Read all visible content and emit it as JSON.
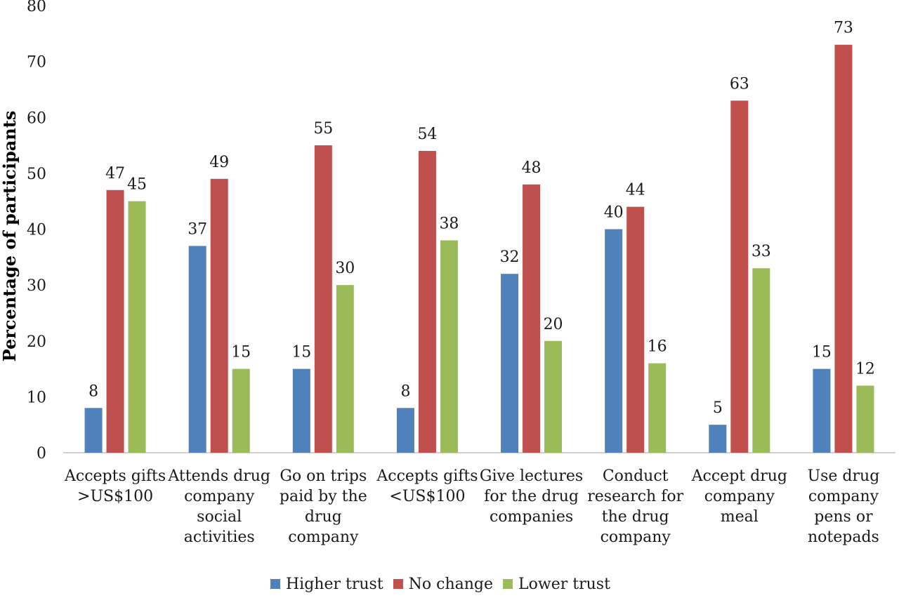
{
  "chart_data": {
    "type": "bar",
    "title": "",
    "xlabel": "",
    "ylabel": "Percentage of participants",
    "ylim": [
      0,
      80
    ],
    "yticks": [
      "0",
      "10",
      "20",
      "30",
      "40",
      "50",
      "60",
      "70",
      "80"
    ],
    "grid": false,
    "legend_position": "bottom",
    "categories": [
      [
        "Accepts gifts",
        ">US$100"
      ],
      [
        "Attends drug",
        "company",
        "social",
        "activities"
      ],
      [
        "Go on trips",
        "paid by the",
        "drug",
        "company"
      ],
      [
        "Accepts gifts",
        "<US$100"
      ],
      [
        "Give lectures",
        "for the drug",
        "companies"
      ],
      [
        "Conduct",
        "research for",
        "the drug",
        "company"
      ],
      [
        "Accept drug",
        "company",
        "meal"
      ],
      [
        "Use drug",
        "company",
        "pens or",
        "notepads"
      ]
    ],
    "series": [
      {
        "name": "Higher trust",
        "color": "#4f81bd",
        "values": [
          8,
          37,
          15,
          8,
          32,
          40,
          5,
          15
        ]
      },
      {
        "name": "No change",
        "color": "#c0504d",
        "values": [
          47,
          49,
          55,
          54,
          48,
          44,
          63,
          73
        ]
      },
      {
        "name": "Lower trust",
        "color": "#9bbb59",
        "values": [
          45,
          15,
          30,
          38,
          20,
          16,
          33,
          12
        ]
      }
    ]
  }
}
